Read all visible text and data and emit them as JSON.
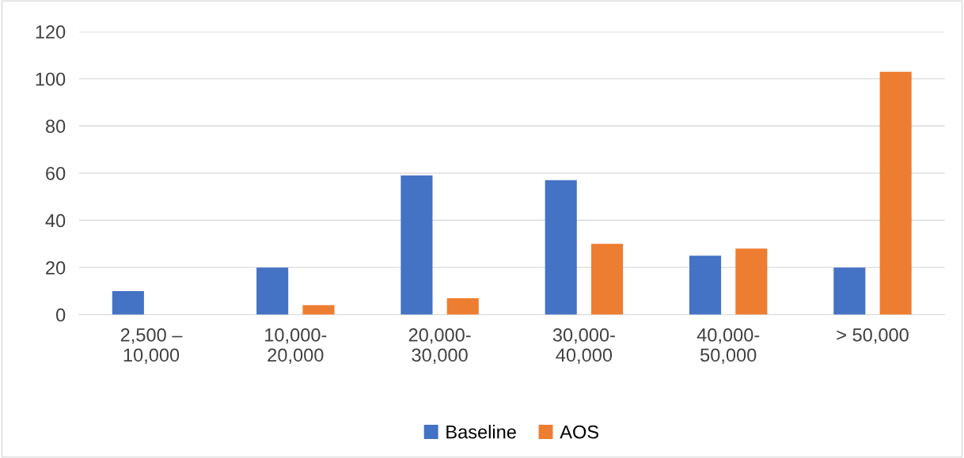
{
  "chart_data": {
    "type": "bar",
    "categories": [
      "2,500 –\n10,000",
      "10,000-\n20,000",
      "20,000-\n30,000",
      "30,000-\n40,000",
      "40,000-\n50,000",
      "> 50,000"
    ],
    "series": [
      {
        "name": "Baseline",
        "color": "#4472c4",
        "values": [
          10,
          20,
          59,
          57,
          25,
          20
        ]
      },
      {
        "name": "AOS",
        "color": "#ed7d31",
        "values": [
          0,
          4,
          7,
          30,
          28,
          103
        ]
      }
    ],
    "ylim": [
      0,
      120
    ],
    "yticks": [
      0,
      20,
      40,
      60,
      80,
      100,
      120
    ],
    "grid": "y",
    "legend": "bottom"
  }
}
